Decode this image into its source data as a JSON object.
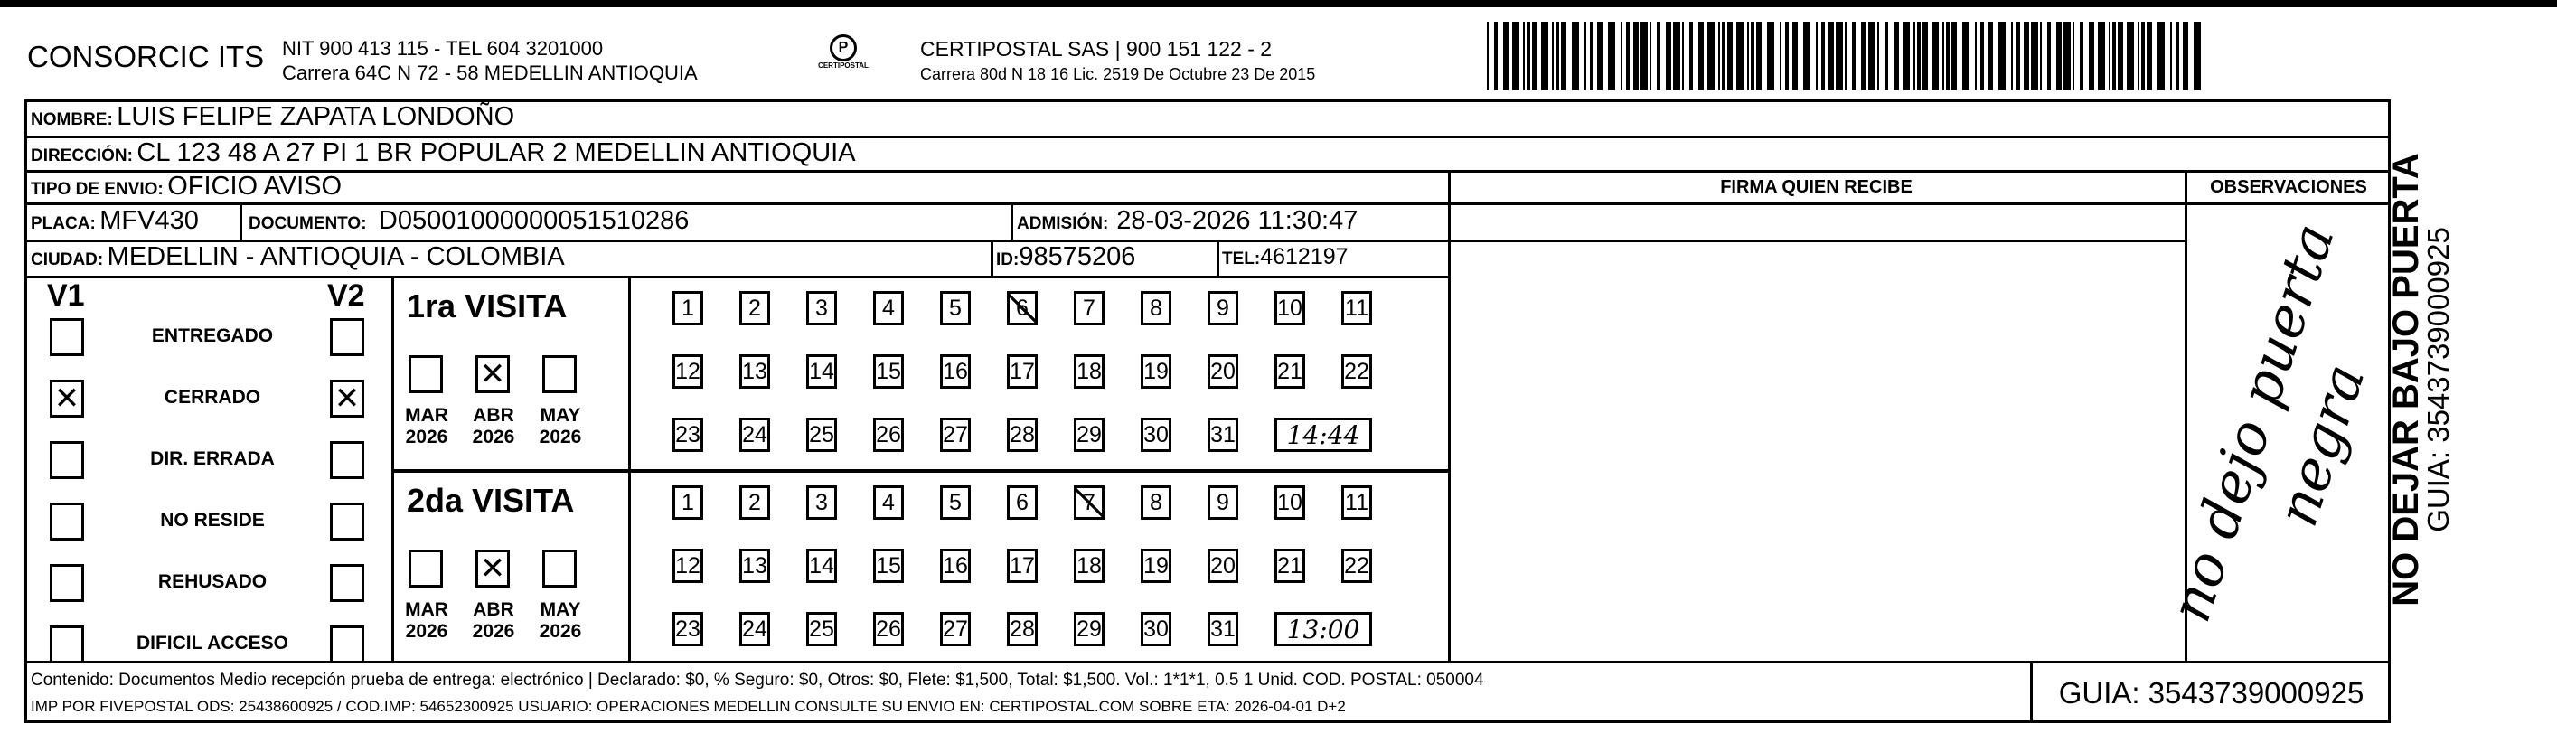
{
  "header": {
    "company": "CONSORCIC ITS",
    "company_line1": "NIT 900 413 115 - TEL 604 3201000",
    "company_line2": "Carrera 64C N 72 - 58 MEDELLIN ANTIOQUIA",
    "logo_text": "CERTIPOSTAL",
    "carrier_line1": "CERTIPOSTAL SAS | 900 151 122 - 2",
    "carrier_line2": "Carrera 80d N 18 16  Lic. 2519 De Octubre 23 De 2015"
  },
  "recipient": {
    "name_label": "NOMBRE:",
    "name": "LUIS FELIPE ZAPATA LONDOÑO",
    "address_label": "DIRECCIÓN:",
    "address": "CL 123  48 A   27 PI 1 BR POPULAR 2 MEDELLIN ANTIOQUIA",
    "type_label": "TIPO DE ENVIO:",
    "type": "OFICIO AVISO",
    "plate_label": "PLACA:",
    "plate": "MFV430",
    "document_label": "DOCUMENTO:",
    "document": "D05001000000051510286",
    "admission_label": "ADMISIÓN:",
    "admission": "28-03-2026 11:30:47",
    "city_label": "CIUDAD:",
    "city": "MEDELLIN - ANTIOQUIA - COLOMBIA",
    "id_label": "ID:",
    "id": "98575206",
    "tel_label": "TEL:",
    "tel": "4612197"
  },
  "signature_header": "FIRMA QUIEN RECIBE",
  "observations_header": "OBSERVACIONES",
  "observations_handwritten": "no dejo puerta negra",
  "status": {
    "v1_label": "V1",
    "v2_label": "V2",
    "items": [
      {
        "label": "ENTREGADO",
        "v1": false,
        "v2": false
      },
      {
        "label": "CERRADO",
        "v1": true,
        "v2": true
      },
      {
        "label": "DIR. ERRADA",
        "v1": false,
        "v2": false
      },
      {
        "label": "NO RESIDE",
        "v1": false,
        "v2": false
      },
      {
        "label": "REHUSADO",
        "v1": false,
        "v2": false
      },
      {
        "label": "DIFICIL ACCESO",
        "v1": false,
        "v2": false
      }
    ]
  },
  "days": [
    "1",
    "2",
    "3",
    "4",
    "5",
    "6",
    "7",
    "8",
    "9",
    "10",
    "11",
    "12",
    "13",
    "14",
    "15",
    "16",
    "17",
    "18",
    "19",
    "20",
    "21",
    "22",
    "23",
    "24",
    "25",
    "26",
    "27",
    "28",
    "29",
    "30",
    "31"
  ],
  "visits": [
    {
      "label": "1ra VISITA",
      "marked_day": 6,
      "time": "14:44",
      "months": [
        {
          "month": "MAR",
          "year": "2026",
          "checked": false
        },
        {
          "month": "ABR",
          "year": "2026",
          "checked": true
        },
        {
          "month": "MAY",
          "year": "2026",
          "checked": false
        }
      ]
    },
    {
      "label": "2da VISITA",
      "marked_day": 7,
      "time": "13:00",
      "months": [
        {
          "month": "MAR",
          "year": "2026",
          "checked": false
        },
        {
          "month": "ABR",
          "year": "2026",
          "checked": true
        },
        {
          "month": "MAY",
          "year": "2026",
          "checked": false
        }
      ]
    }
  ],
  "footer": {
    "line1": "Contenido: Documentos Medio recepción prueba de entrega: electrónico | Declarado: $0, % Seguro: $0, Otros: $0, Flete: $1,500, Total: $1,500. Vol.: 1*1*1, 0.5  1 Unid. COD. POSTAL: 050004",
    "line2": "IMP POR FIVEPOSTAL ODS: 25438600925 / COD.IMP: 54652300925 USUARIO: OPERACIONES MEDELLIN CONSULTE SU ENVIO EN: CERTIPOSTAL.COM SOBRE ETA: 2026-04-01 D+2",
    "guia": "GUIA: 3543739000925"
  },
  "side": {
    "warning": "NO DEJAR BAJO PUERTA",
    "guia": "GUIA: 3543739000925"
  }
}
